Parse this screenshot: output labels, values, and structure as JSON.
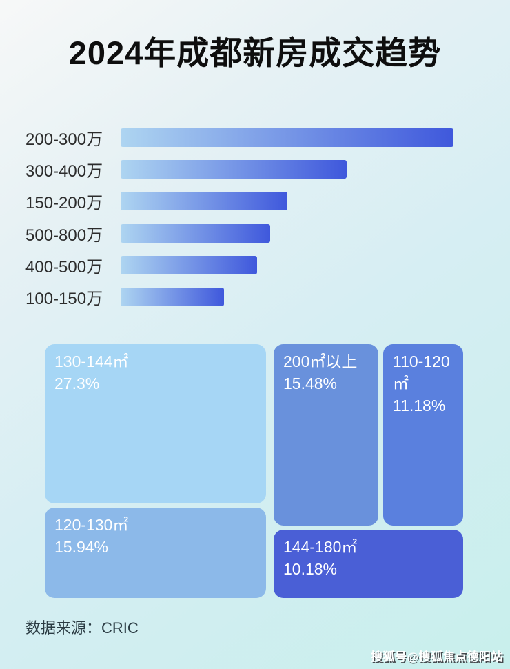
{
  "title": "2024年成都新房成交趋势",
  "bar_chart": {
    "bar_gradient": [
      "#aed5f1",
      "#3f58dc"
    ],
    "rows": [
      {
        "label": "200-300万",
        "length_pct": 100
      },
      {
        "label": "300-400万",
        "length_pct": 68
      },
      {
        "label": "150-200万",
        "length_pct": 50
      },
      {
        "label": "500-800万",
        "length_pct": 45
      },
      {
        "label": "400-500万",
        "length_pct": 41
      },
      {
        "label": "100-150万",
        "length_pct": 31
      }
    ]
  },
  "treemap": {
    "blocks": [
      {
        "label": "130-144㎡",
        "pct": "27.3%",
        "color": "#a6d6f5"
      },
      {
        "label": "200㎡以上",
        "pct": "15.48%",
        "color": "#6991dc"
      },
      {
        "label": "110-120㎡",
        "pct": "11.18%",
        "color": "#5a80de"
      },
      {
        "label": "120-130㎡",
        "pct": "15.94%",
        "color": "#8cb9e9"
      },
      {
        "label": "144-180㎡",
        "pct": "10.18%",
        "color": "#4a5fd6"
      }
    ]
  },
  "source": "数据来源：CRIC",
  "watermark": "搜狐号@搜狐焦点德阳站",
  "chart_data": [
    {
      "type": "bar",
      "orientation": "horizontal",
      "title": "2024年成都新房成交趋势",
      "categories": [
        "200-300万",
        "300-400万",
        "150-200万",
        "500-800万",
        "400-500万",
        "100-150万"
      ],
      "values": [
        100,
        68,
        50,
        45,
        41,
        31
      ],
      "value_unit": "relative bar length, % of longest bar (no numeric labels shown in image)",
      "xlabel": "",
      "ylabel": "",
      "grid": false,
      "legend": false
    },
    {
      "type": "treemap",
      "categories": [
        "130-144㎡",
        "200㎡以上",
        "110-120㎡",
        "120-130㎡",
        "144-180㎡"
      ],
      "values": [
        27.3,
        15.48,
        11.18,
        15.94,
        10.18
      ],
      "value_unit": "percent share of transactions",
      "legend": false
    }
  ]
}
